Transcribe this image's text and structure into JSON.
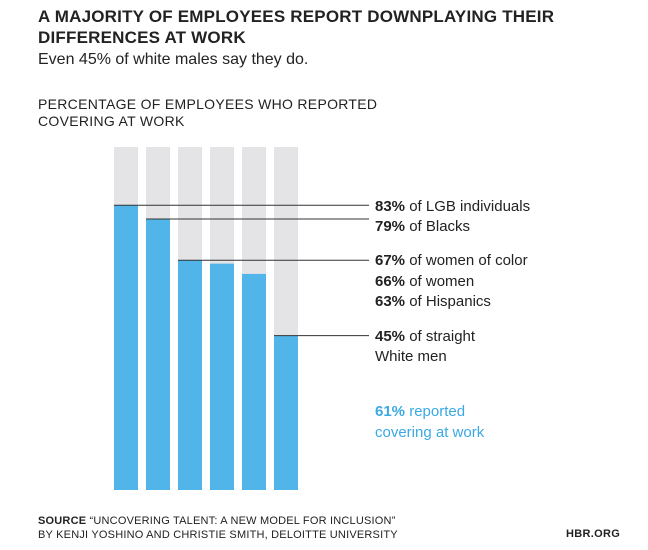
{
  "header": {
    "title": "A MAJORITY OF EMPLOYEES REPORT DOWNPLAYING THEIR DIFFERENCES AT WORK",
    "subtitle": "Even 45% of white males say they do."
  },
  "chart_heading": "PERCENTAGE OF EMPLOYEES WHO REPORTED COVERING AT WORK",
  "chart_data": {
    "type": "bar",
    "title": "PERCENTAGE OF EMPLOYEES WHO REPORTED COVERING AT WORK",
    "ylim": [
      0,
      100
    ],
    "grid": false,
    "legend": "none",
    "values": [
      83,
      79,
      67,
      66,
      63,
      45
    ],
    "labels": [
      {
        "value": "83%",
        "text": " of LGB individuals"
      },
      {
        "value": "79%",
        "text": " of Blacks"
      },
      {
        "value": "67%",
        "text": " of women of color"
      },
      {
        "value": "66%",
        "text": " of women"
      },
      {
        "value": "63%",
        "text": " of Hispanics"
      },
      {
        "value": "45%",
        "text": " of straight",
        "text2": "White men"
      }
    ],
    "leader_lines_for": [
      0,
      1,
      2,
      5
    ],
    "annotation": {
      "value": "61%",
      "line1": " reported",
      "line2": "covering at work"
    }
  },
  "colors": {
    "bar_fill": "#52b5ea",
    "bar_background": "#e4e4e6",
    "text": "#222222",
    "annotation": "#3aa9e4"
  },
  "source": {
    "label": "SOURCE",
    "line1": "“UNCOVERING TALENT: A NEW MODEL FOR INCLUSION”",
    "line2": "BY KENJI YOSHINO AND CHRISTIE SMITH, DELOITTE UNIVERSITY"
  },
  "publisher": "HBR.ORG"
}
